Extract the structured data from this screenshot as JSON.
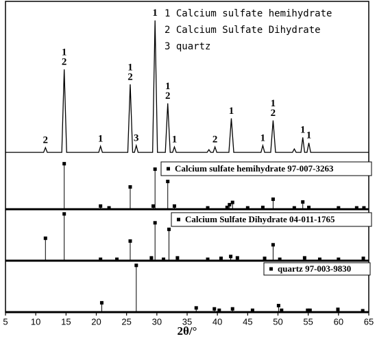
{
  "chart_data": [
    {
      "type": "line",
      "color": "#000000",
      "x": [
        5,
        11.3,
        11.6,
        11.9,
        14.3,
        14.7,
        15.1,
        20.4,
        20.7,
        21.0,
        25.2,
        25.6,
        26.0,
        26.3,
        26.6,
        26.9,
        29.3,
        29.7,
        30.1,
        31.4,
        31.8,
        32.2,
        32.6,
        32.9,
        33.2,
        38.3,
        38.6,
        38.9,
        39.3,
        39.6,
        39.9,
        41.9,
        42.3,
        42.7,
        47.2,
        47.5,
        47.8,
        48.8,
        49.2,
        49.6,
        52.4,
        52.7,
        53.0,
        53.8,
        54.1,
        54.4,
        54.8,
        55.1,
        55.4,
        65
      ],
      "values": [
        10,
        10,
        17,
        10,
        10,
        132,
        10,
        10,
        19,
        10,
        10,
        110,
        10,
        10,
        20,
        10,
        10,
        204,
        10,
        10,
        82,
        10,
        10,
        18,
        10,
        10,
        14,
        10,
        10,
        18,
        10,
        10,
        60,
        10,
        10,
        20,
        10,
        10,
        57,
        10,
        10,
        15,
        10,
        10,
        32,
        10,
        10,
        24,
        10,
        10
      ],
      "xlim": [
        5,
        65
      ],
      "ylim": [
        0,
        232
      ],
      "annotations": [
        {
          "x": 11.6,
          "labels": [
            "2"
          ]
        },
        {
          "x": 14.7,
          "labels": [
            "1",
            "2"
          ]
        },
        {
          "x": 20.7,
          "labels": [
            "1"
          ]
        },
        {
          "x": 25.6,
          "labels": [
            "1",
            "2"
          ]
        },
        {
          "x": 26.6,
          "labels": [
            "3"
          ]
        },
        {
          "x": 29.7,
          "labels": [
            "1"
          ]
        },
        {
          "x": 31.8,
          "labels": [
            "1",
            "2"
          ]
        },
        {
          "x": 32.9,
          "labels": [
            "1"
          ]
        },
        {
          "x": 39.6,
          "labels": [
            "2"
          ]
        },
        {
          "x": 42.3,
          "labels": [
            "1"
          ]
        },
        {
          "x": 47.5,
          "labels": [
            "1"
          ]
        },
        {
          "x": 49.2,
          "labels": [
            "1",
            "2"
          ]
        },
        {
          "x": 54.1,
          "labels": [
            "1"
          ]
        },
        {
          "x": 55.1,
          "labels": [
            "1"
          ]
        }
      ],
      "legend_items": [
        "1 Calcium sulfate hemihydrate",
        "2 Calcium Sulfate Dihydrate",
        "3 quartz"
      ]
    },
    {
      "type": "stem",
      "name": "Calcium sulfate hemihydrate 97-007-3263",
      "color": "#000000",
      "x": [
        14.7,
        20.7,
        22.1,
        25.6,
        29.4,
        29.7,
        31.8,
        32.9,
        38.4,
        41.6,
        42.0,
        42.5,
        45.0,
        47.5,
        49.2,
        52.7,
        54.1,
        55.1,
        60.0,
        63.0,
        64.2
      ],
      "values": [
        100,
        7,
        3,
        49,
        7,
        88,
        61,
        7,
        3,
        4,
        10,
        15,
        3,
        4,
        22,
        3,
        16,
        4,
        3,
        3,
        3
      ],
      "xlim": [
        5,
        65
      ],
      "ylim": [
        0,
        110
      ]
    },
    {
      "type": "stem",
      "name": "Calcium Sulfate Dihydrate 04-011-1765",
      "color": "#000000",
      "x": [
        11.6,
        14.7,
        20.7,
        23.4,
        25.6,
        29.1,
        29.7,
        31.1,
        32.0,
        33.4,
        38.4,
        40.6,
        42.2,
        43.3,
        47.8,
        49.2,
        50.3,
        54.4,
        56.9,
        60.0,
        64.1
      ],
      "values": [
        48,
        100,
        3,
        3,
        42,
        6,
        81,
        3,
        67,
        6,
        3,
        5,
        9,
        6,
        5,
        34,
        3,
        6,
        3,
        3,
        5
      ],
      "xlim": [
        5,
        65
      ],
      "ylim": [
        0,
        110
      ]
    },
    {
      "type": "stem",
      "name": "quartz 97-003-9830",
      "color": "#000000",
      "x": [
        20.9,
        26.6,
        36.5,
        39.5,
        40.3,
        42.5,
        45.8,
        50.1,
        50.6,
        54.9,
        55.3,
        59.9,
        64.0
      ],
      "values": [
        20,
        100,
        9,
        7,
        4,
        7,
        4,
        14,
        4,
        4,
        4,
        6,
        3
      ],
      "xlim": [
        5,
        65
      ],
      "ylim": [
        0,
        110
      ],
      "xticks": [
        5,
        10,
        15,
        20,
        25,
        30,
        35,
        40,
        45,
        50,
        55,
        60,
        65
      ],
      "xlabel": "2θ/°"
    }
  ]
}
